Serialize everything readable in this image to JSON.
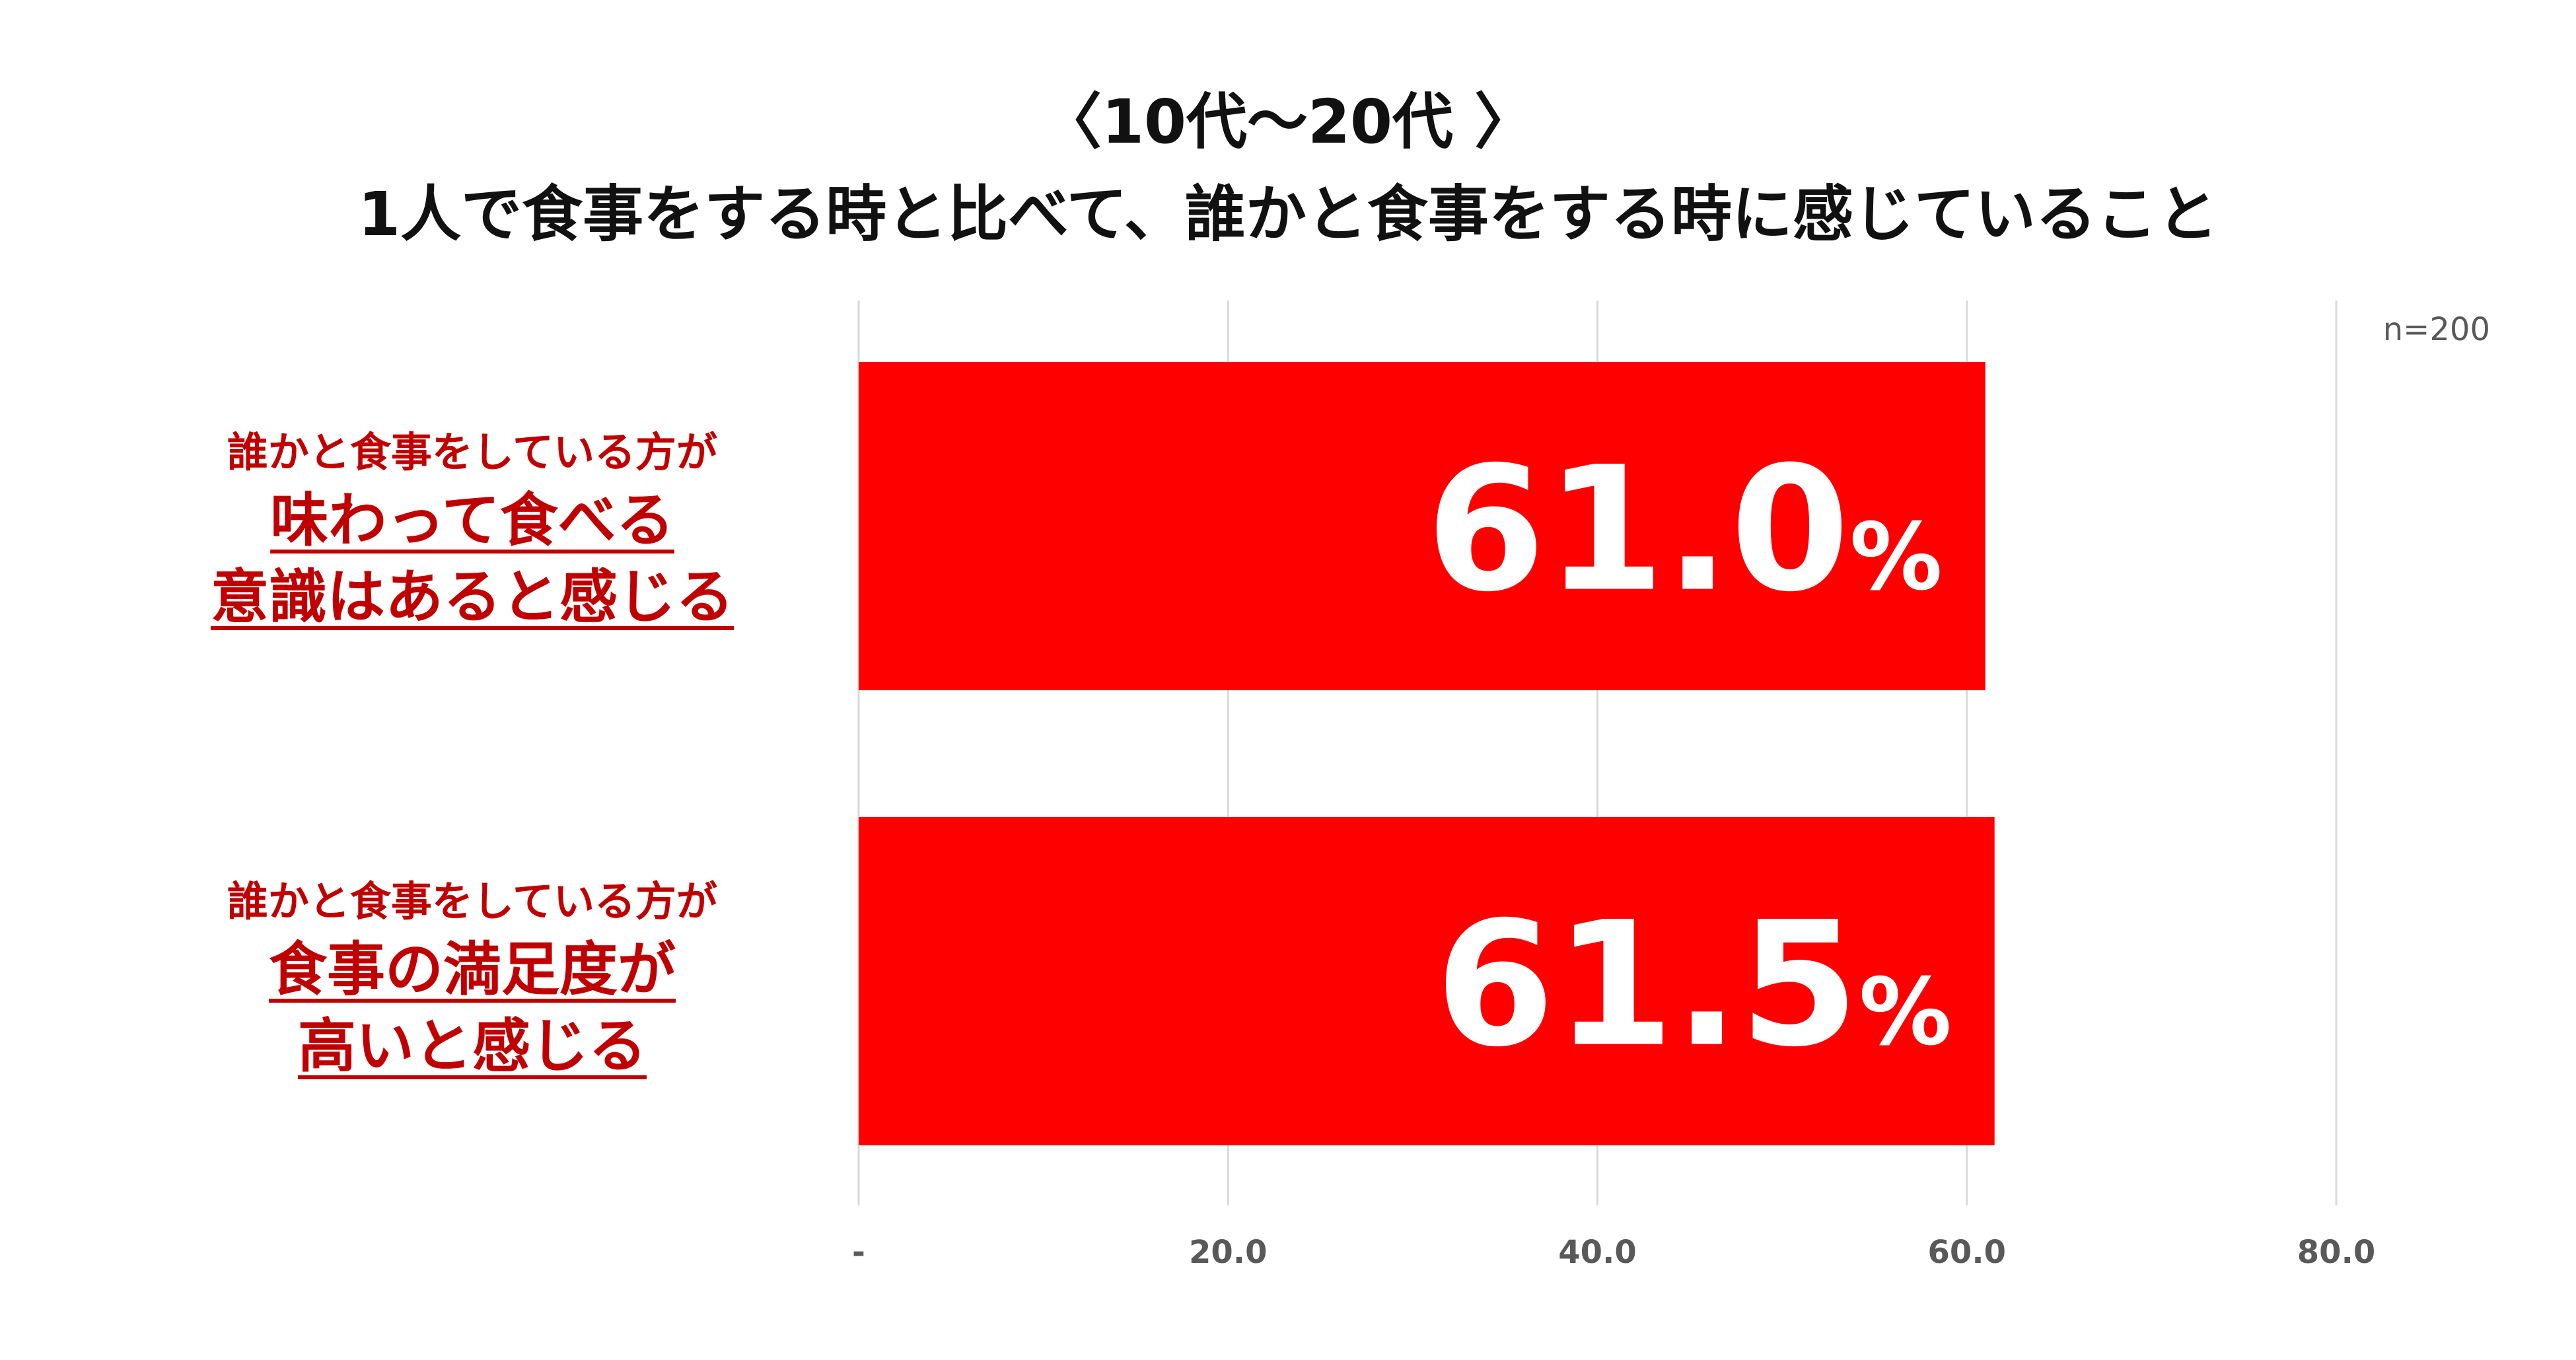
{
  "title_line1": "〈10代〜20代 〉",
  "title_line2": "1人で食事をする時と比べて、誰かと食事をする時に感じていること",
  "sample_note": "n=200",
  "colors": {
    "bar": "#FF0000",
    "label": "#C00000",
    "grid": "#D9D9D9",
    "tick": "#595959",
    "value": "#FFFFFF"
  },
  "chart_data": {
    "type": "bar",
    "orientation": "horizontal",
    "categories": [
      {
        "small": "誰かと食事をしている方が",
        "big": [
          "味わって食べる",
          "意識はあると感じる"
        ]
      },
      {
        "small": "誰かと食事をしている方が",
        "big": [
          "食事の満足度が",
          "高いと感じる"
        ]
      }
    ],
    "values": [
      61.0,
      61.5
    ],
    "value_labels": [
      "61.0",
      "61.5"
    ],
    "value_unit": "%",
    "xlim": [
      0,
      80
    ],
    "ticks": [
      0,
      20,
      40,
      60,
      80
    ],
    "tick_labels": [
      "-",
      "20.0",
      "40.0",
      "60.0",
      "80.0"
    ],
    "grid": true
  }
}
